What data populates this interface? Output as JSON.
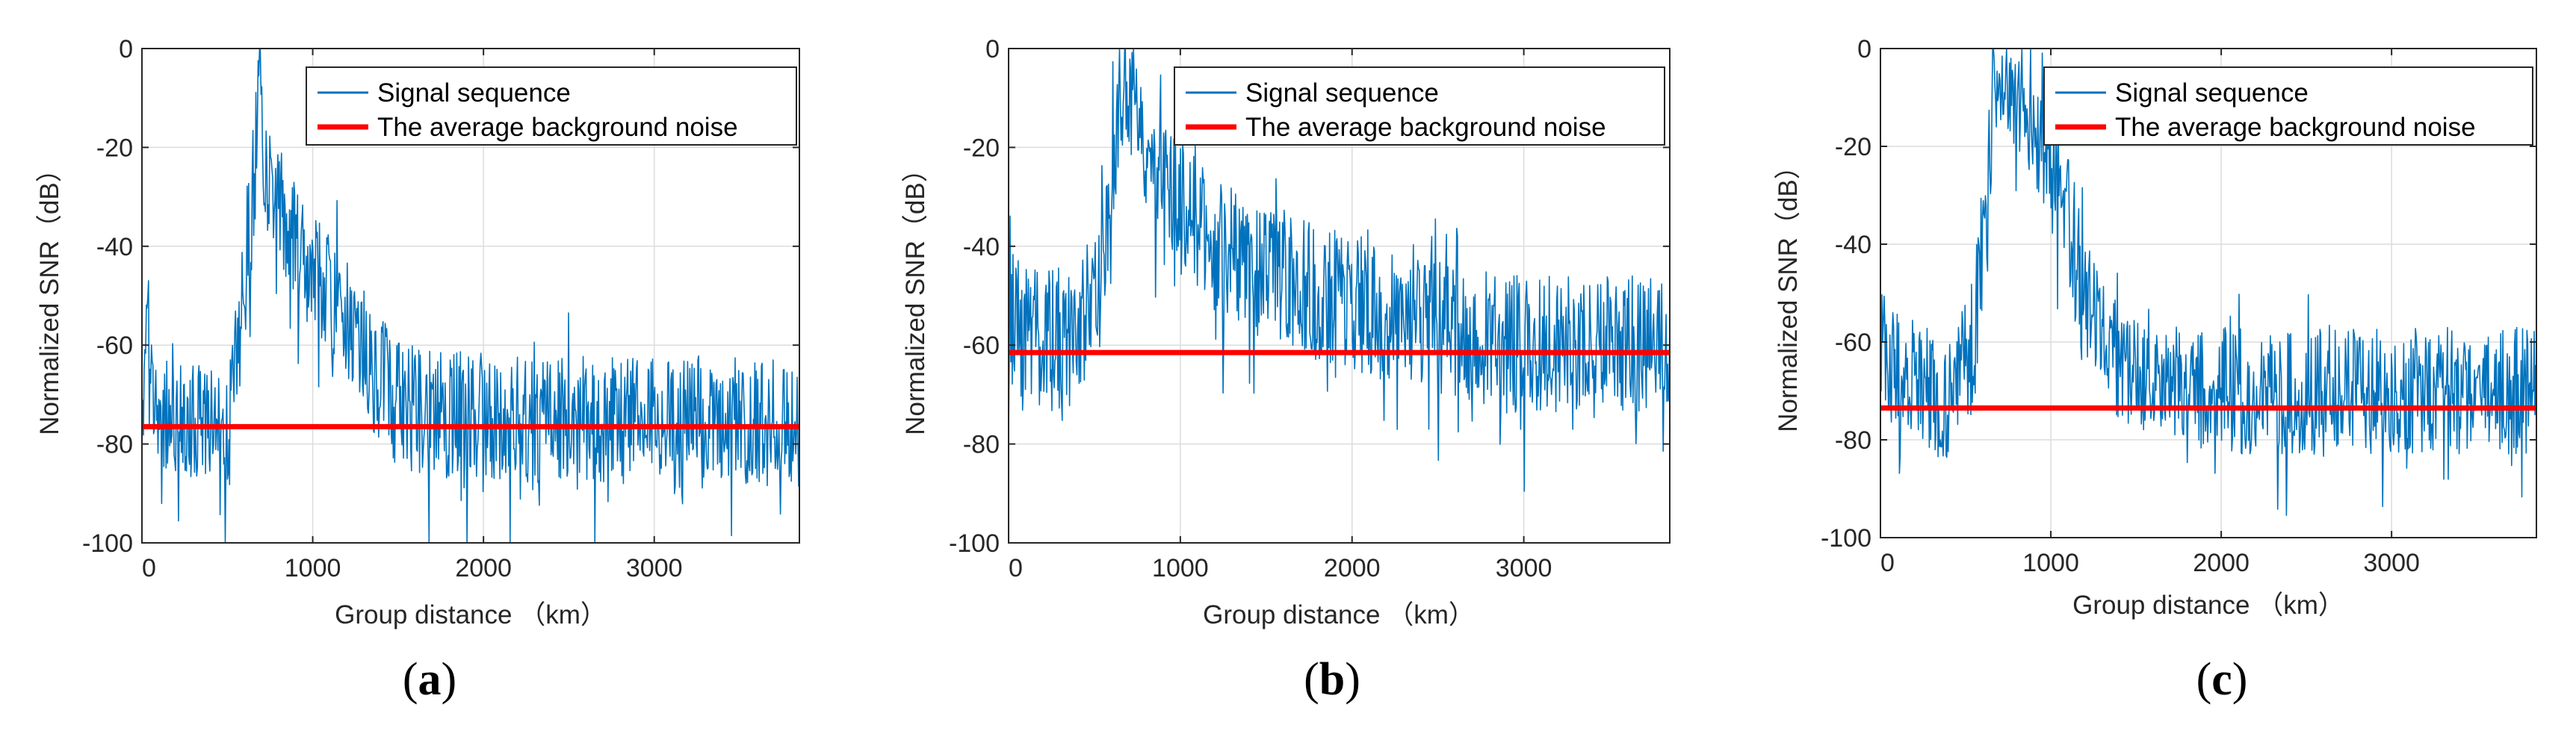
{
  "chart_data": [
    {
      "type": "line",
      "panel_label": "a",
      "xlabel": "Group distance （km）",
      "ylabel": "Normalized SNR（dB）",
      "xlim": [
        0,
        3850
      ],
      "ylim": [
        -100,
        0
      ],
      "xticks": [
        0,
        1000,
        2000,
        3000
      ],
      "yticks": [
        0,
        -20,
        -40,
        -60,
        -80,
        -100
      ],
      "grid": true,
      "legend_position": "top-right",
      "series": [
        {
          "name": "Signal sequence",
          "color": "#0072BD",
          "profile": {
            "x": [
              0,
              30,
              60,
              120,
              300,
              500,
              560,
              620,
              660,
              690,
              720,
              800,
              900,
              1000,
              1100,
              1200,
              1300,
              1500,
              1800,
              2200,
              2600,
              3000,
              3400,
              3850
            ],
            "center": [
              -78,
              -45,
              -72,
              -75,
              -76,
              -76,
              -55,
              -40,
              -25,
              -3,
              -25,
              -30,
              -40,
              -45,
              -50,
              -55,
              -62,
              -72,
              -74,
              -75,
              -75,
              -75,
              -75,
              -76
            ],
            "spread": [
              12,
              10,
              12,
              12,
              12,
              12,
              14,
              14,
              14,
              6,
              12,
              12,
              12,
              12,
              12,
              12,
              13,
              13,
              13,
              13,
              13,
              13,
              13,
              13
            ]
          },
          "peak": {
            "x": 690,
            "y": 0
          },
          "seed": 11
        },
        {
          "name": "The average background noise",
          "color": "#FF0000",
          "x": [
            0,
            3850
          ],
          "y": [
            -76.5,
            -76.5
          ]
        }
      ]
    },
    {
      "type": "line",
      "panel_label": "b",
      "xlabel": "Group distance （km）",
      "ylabel": "Normalized SNR（dB）",
      "xlim": [
        0,
        3850
      ],
      "ylim": [
        -100,
        0
      ],
      "xticks": [
        0,
        1000,
        2000,
        3000
      ],
      "yticks": [
        0,
        -20,
        -40,
        -60,
        -80,
        -100
      ],
      "grid": true,
      "legend_position": "top-right",
      "series": [
        {
          "name": "Signal sequence",
          "color": "#0072BD",
          "profile": {
            "x": [
              0,
              200,
              400,
              550,
              620,
              680,
              750,
              850,
              1000,
              1200,
              1500,
              2000,
              2500,
              3000,
              3500,
              3850
            ],
            "center": [
              -55,
              -58,
              -58,
              -45,
              -20,
              -8,
              -15,
              -22,
              -30,
              -38,
              -45,
              -52,
              -57,
              -60,
              -60,
              -60
            ],
            "spread": [
              14,
              15,
              15,
              14,
              12,
              10,
              12,
              12,
              14,
              14,
              14,
              14,
              14,
              14,
              14,
              14
            ]
          },
          "peak": {
            "x": 680,
            "y": 0
          },
          "seed": 23
        },
        {
          "name": "The average background noise",
          "color": "#FF0000",
          "x": [
            0,
            3850
          ],
          "y": [
            -61.5,
            -61.5
          ]
        }
      ]
    },
    {
      "type": "line",
      "panel_label": "c",
      "xlabel": "Group distance （km）",
      "ylabel": "Normalized SNR（dB）",
      "xlim": [
        0,
        3850
      ],
      "ylim": [
        -100,
        0
      ],
      "xticks": [
        0,
        1000,
        2000,
        3000
      ],
      "yticks": [
        0,
        -20,
        -40,
        -60,
        -80,
        -100
      ],
      "grid": true,
      "legend_position": "top-right",
      "series": [
        {
          "name": "Signal sequence",
          "color": "#0072BD",
          "profile": {
            "x": [
              0,
              200,
              400,
              550,
              620,
              680,
              750,
              850,
              1000,
              1100,
              1200,
              1300,
              1500,
              2000,
              2500,
              3000,
              3500,
              3850
            ],
            "center": [
              -62,
              -68,
              -72,
              -60,
              -30,
              -10,
              -8,
              -12,
              -25,
              -35,
              -50,
              -60,
              -65,
              -70,
              -70,
              -70,
              -70,
              -70
            ],
            "spread": [
              13,
              13,
              13,
              14,
              14,
              10,
              10,
              12,
              13,
              13,
              13,
              13,
              13,
              13,
              13,
              13,
              13,
              13
            ]
          },
          "peak": {
            "x": 660,
            "y": 0
          },
          "seed": 37
        },
        {
          "name": "The average background noise",
          "color": "#FF0000",
          "x": [
            0,
            3850
          ],
          "y": [
            -73.5,
            -73.5
          ]
        }
      ]
    }
  ]
}
